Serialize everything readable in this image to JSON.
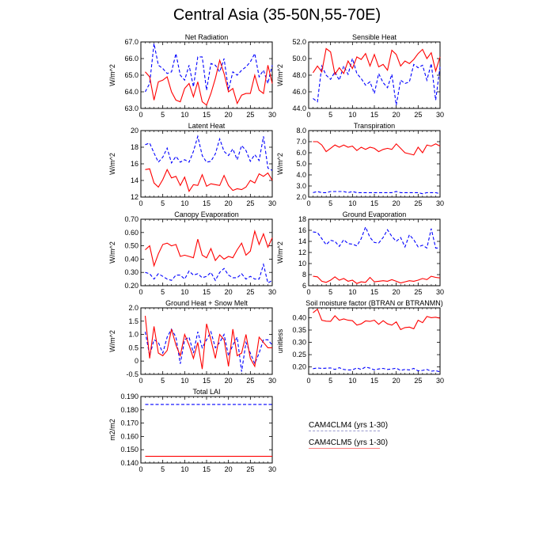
{
  "title": "Central Asia (35-50N,55-70E)",
  "colors": {
    "clm4": "#0000ff",
    "clm5": "#ff0000"
  },
  "legend": {
    "entries": [
      {
        "label": "CAM4CLM4 (yrs 1-30)",
        "style": "dashed",
        "color": "#0000ff"
      },
      {
        "label": "CAM4CLM5 (yrs 1-30)",
        "style": "solid",
        "color": "#ff0000"
      }
    ]
  },
  "chart_data": [
    {
      "type": "line",
      "title": "Net Radiation",
      "xlabel": "",
      "ylabel": "W/m^2",
      "xlim": [
        0,
        30
      ],
      "ylim": [
        63.0,
        67.0
      ],
      "xticks": [
        "0",
        "5",
        "10",
        "15",
        "20",
        "25",
        "30"
      ],
      "yticks": [
        "63.0",
        "64.0",
        "65.0",
        "66.0",
        "67.0"
      ],
      "series": [
        {
          "name": "CAM4CLM4 (yrs 1-30)",
          "style": "dashed",
          "values": [
            64.0,
            64.5,
            66.9,
            65.6,
            65.4,
            65.1,
            65.2,
            66.3,
            65.0,
            64.7,
            65.6,
            64.3,
            66.1,
            66.1,
            64.1,
            65.7,
            65.6,
            65.2,
            66.0,
            64.1,
            65.2,
            65.0,
            65.3,
            65.5,
            65.8,
            66.3,
            64.9,
            65.3,
            64.5,
            65.6
          ]
        },
        {
          "name": "CAM4CLM5 (yrs 1-30)",
          "style": "solid",
          "values": [
            65.2,
            64.9,
            63.5,
            64.6,
            64.7,
            64.9,
            64.0,
            63.5,
            63.4,
            64.2,
            64.5,
            63.7,
            64.6,
            63.4,
            63.2,
            63.9,
            64.8,
            65.9,
            65.1,
            64.0,
            64.2,
            63.3,
            63.8,
            63.9,
            63.9,
            65.0,
            64.1,
            63.9,
            65.6,
            64.5
          ]
        }
      ]
    },
    {
      "type": "line",
      "title": "Sensible Heat",
      "xlabel": "",
      "ylabel": "W/m^2",
      "xlim": [
        0,
        30
      ],
      "ylim": [
        44.0,
        52.0
      ],
      "xticks": [
        "0",
        "5",
        "10",
        "15",
        "20",
        "25",
        "30"
      ],
      "yticks": [
        "44.0",
        "46.0",
        "48.0",
        "50.0",
        "52.0"
      ],
      "series": [
        {
          "name": "CAM4CLM4 (yrs 1-30)",
          "style": "dashed",
          "values": [
            45.2,
            44.8,
            49.1,
            48.0,
            47.5,
            48.4,
            47.4,
            49.1,
            48.1,
            50.0,
            48.2,
            47.6,
            46.8,
            47.2,
            45.8,
            48.2,
            47.1,
            46.5,
            48.1,
            44.4,
            47.4,
            47.0,
            47.2,
            49.3,
            48.9,
            49.2,
            47.4,
            49.4,
            45.0,
            49.0
          ]
        },
        {
          "name": "CAM4CLM5 (yrs 1-30)",
          "style": "solid",
          "values": [
            48.3,
            49.1,
            48.4,
            51.2,
            50.8,
            48.1,
            48.9,
            48.2,
            49.7,
            48.8,
            50.2,
            49.9,
            50.6,
            49.1,
            50.5,
            49.0,
            49.3,
            48.6,
            51.0,
            50.5,
            49.1,
            49.7,
            49.4,
            49.9,
            50.6,
            51.1,
            50.0,
            50.7,
            48.5,
            50.2
          ]
        }
      ]
    },
    {
      "type": "line",
      "title": "Latent Heat",
      "xlabel": "",
      "ylabel": "W/m^2",
      "xlim": [
        0,
        30
      ],
      "ylim": [
        12,
        20
      ],
      "xticks": [
        "0",
        "5",
        "10",
        "15",
        "20",
        "25",
        "30"
      ],
      "yticks": [
        "12",
        "14",
        "16",
        "18",
        "20"
      ],
      "series": [
        {
          "name": "CAM4CLM4 (yrs 1-30)",
          "style": "dashed",
          "values": [
            18.3,
            18.5,
            17.3,
            16.2,
            16.8,
            17.9,
            16.1,
            16.9,
            16.2,
            16.5,
            16.2,
            17.5,
            19.3,
            17.0,
            16.2,
            16.3,
            17.2,
            19.0,
            17.5,
            17.0,
            17.8,
            16.5,
            18.2,
            17.6,
            16.3,
            17.1,
            16.4,
            19.3,
            15.5,
            15.2
          ]
        },
        {
          "name": "CAM4CLM5 (yrs 1-30)",
          "style": "solid",
          "values": [
            15.3,
            15.4,
            13.7,
            13.2,
            14.1,
            15.3,
            14.3,
            14.5,
            13.4,
            14.4,
            12.7,
            13.5,
            13.4,
            14.7,
            13.3,
            13.6,
            13.5,
            13.4,
            14.6,
            13.4,
            12.8,
            13.0,
            12.9,
            13.2,
            14.0,
            13.7,
            14.8,
            14.5,
            14.9,
            14.0
          ]
        }
      ]
    },
    {
      "type": "line",
      "title": "Transpiration",
      "xlabel": "",
      "ylabel": "W/m^2",
      "xlim": [
        0,
        30
      ],
      "ylim": [
        2.0,
        8.0
      ],
      "xticks": [
        "0",
        "5",
        "10",
        "15",
        "20",
        "25",
        "30"
      ],
      "yticks": [
        "2.0",
        "3.0",
        "4.0",
        "5.0",
        "6.0",
        "7.0",
        "8.0"
      ],
      "series": [
        {
          "name": "CAM4CLM4 (yrs 1-30)",
          "style": "dashed",
          "values": [
            2.4,
            2.5,
            2.4,
            2.4,
            2.5,
            2.5,
            2.5,
            2.5,
            2.4,
            2.5,
            2.4,
            2.4,
            2.4,
            2.4,
            2.4,
            2.4,
            2.4,
            2.4,
            2.4,
            2.5,
            2.4,
            2.4,
            2.4,
            2.4,
            2.4,
            2.3,
            2.4,
            2.4,
            2.4,
            2.3
          ]
        },
        {
          "name": "CAM4CLM5 (yrs 1-30)",
          "style": "solid",
          "values": [
            7.0,
            7.0,
            6.7,
            6.1,
            6.4,
            6.7,
            6.5,
            6.7,
            6.5,
            6.6,
            6.2,
            6.5,
            6.3,
            6.5,
            6.4,
            6.1,
            6.3,
            6.4,
            6.3,
            6.8,
            6.4,
            6.0,
            5.9,
            5.8,
            6.5,
            6.0,
            6.7,
            6.6,
            6.8,
            6.6
          ]
        }
      ]
    },
    {
      "type": "line",
      "title": "Canopy Evaporation",
      "xlabel": "",
      "ylabel": "W/m^2",
      "xlim": [
        0,
        30
      ],
      "ylim": [
        0.2,
        0.7
      ],
      "xticks": [
        "0",
        "5",
        "10",
        "15",
        "20",
        "25",
        "30"
      ],
      "yticks": [
        "0.20",
        "0.30",
        "0.40",
        "0.50",
        "0.60",
        "0.70"
      ],
      "series": [
        {
          "name": "CAM4CLM4 (yrs 1-30)",
          "style": "dashed",
          "values": [
            0.3,
            0.29,
            0.25,
            0.29,
            0.27,
            0.25,
            0.24,
            0.28,
            0.28,
            0.25,
            0.31,
            0.28,
            0.29,
            0.26,
            0.27,
            0.3,
            0.24,
            0.3,
            0.33,
            0.28,
            0.26,
            0.26,
            0.29,
            0.25,
            0.27,
            0.25,
            0.25,
            0.36,
            0.22,
            0.24
          ]
        },
        {
          "name": "CAM4CLM5 (yrs 1-30)",
          "style": "solid",
          "values": [
            0.47,
            0.5,
            0.35,
            0.44,
            0.51,
            0.52,
            0.5,
            0.51,
            0.42,
            0.43,
            0.42,
            0.41,
            0.55,
            0.43,
            0.41,
            0.48,
            0.39,
            0.43,
            0.4,
            0.42,
            0.41,
            0.47,
            0.52,
            0.43,
            0.46,
            0.61,
            0.51,
            0.59,
            0.49,
            0.56
          ]
        }
      ]
    },
    {
      "type": "line",
      "title": "Ground Evaporation",
      "xlabel": "",
      "ylabel": "W/m^2",
      "xlim": [
        0,
        30
      ],
      "ylim": [
        6,
        18
      ],
      "xticks": [
        "0",
        "5",
        "10",
        "15",
        "20",
        "25",
        "30"
      ],
      "yticks": [
        "6",
        "8",
        "10",
        "12",
        "14",
        "16",
        "18"
      ],
      "series": [
        {
          "name": "CAM4CLM4 (yrs 1-30)",
          "style": "dashed",
          "values": [
            15.7,
            15.6,
            14.5,
            13.4,
            14.2,
            14.0,
            13.1,
            14.3,
            13.6,
            13.5,
            13.2,
            14.5,
            16.6,
            14.7,
            13.8,
            13.7,
            14.7,
            16.1,
            14.9,
            14.0,
            14.7,
            13.0,
            15.2,
            14.3,
            13.0,
            13.3,
            12.8,
            16.3,
            12.8,
            12.8
          ]
        },
        {
          "name": "CAM4CLM5 (yrs 1-30)",
          "style": "solid",
          "values": [
            7.7,
            7.6,
            6.8,
            6.6,
            7.0,
            7.6,
            7.0,
            7.3,
            6.8,
            7.0,
            6.4,
            6.7,
            6.6,
            7.5,
            6.7,
            6.8,
            6.9,
            6.8,
            7.1,
            6.8,
            6.5,
            6.7,
            6.9,
            6.8,
            7.0,
            7.3,
            7.1,
            7.7,
            7.5,
            7.4
          ]
        }
      ]
    },
    {
      "type": "line",
      "title": "Ground Heat + Snow Melt",
      "xlabel": "",
      "ylabel": "W/m^2",
      "xlim": [
        0,
        30
      ],
      "ylim": [
        -0.5,
        2.0
      ],
      "xticks": [
        "0",
        "5",
        "10",
        "15",
        "20",
        "25",
        "30"
      ],
      "yticks": [
        "-0.5",
        "0",
        "0.5",
        "1.0",
        "1.5",
        "2.0"
      ],
      "series": [
        {
          "name": "CAM4CLM4 (yrs 1-30)",
          "style": "dashed",
          "values": [
            1.1,
            0.2,
            0.8,
            0.7,
            0.3,
            0.9,
            1.2,
            0.9,
            -0.1,
            0.8,
            0.9,
            0.3,
            1.1,
            0.5,
            0.8,
            1.1,
            0.5,
            0.7,
            1.0,
            0.2,
            0.6,
            0.9,
            -0.4,
            0.7,
            0.3,
            -0.1,
            0.3,
            0.8,
            0.8,
            0.6
          ]
        },
        {
          "name": "CAM4CLM5 (yrs 1-30)",
          "style": "solid",
          "values": [
            1.7,
            0.1,
            1.3,
            0.3,
            0.2,
            0.4,
            1.2,
            0.6,
            0.2,
            1.0,
            0.6,
            0.1,
            0.7,
            -0.3,
            1.4,
            0.8,
            0.1,
            1.0,
            0.8,
            -0.2,
            1.2,
            0.2,
            0.3,
            1.0,
            0.1,
            -0.2,
            0.9,
            0.7,
            0.5,
            0.5
          ]
        }
      ]
    },
    {
      "type": "line",
      "title": "Soil moisture factor (BTRAN or BTRANMN)",
      "xlabel": "",
      "ylabel": "unitless",
      "xlim": [
        0,
        30
      ],
      "ylim": [
        0.17,
        0.44
      ],
      "xticks": [
        "0",
        "5",
        "10",
        "15",
        "20",
        "25",
        "30"
      ],
      "yticks": [
        "0.20",
        "0.25",
        "0.30",
        "0.35",
        "0.40"
      ],
      "series": [
        {
          "name": "CAM4CLM4 (yrs 1-30)",
          "style": "dashed",
          "values": [
            0.193,
            0.196,
            0.194,
            0.195,
            0.196,
            0.19,
            0.197,
            0.19,
            0.188,
            0.188,
            0.196,
            0.19,
            0.2,
            0.195,
            0.188,
            0.192,
            0.194,
            0.19,
            0.192,
            0.195,
            0.186,
            0.19,
            0.188,
            0.194,
            0.184,
            0.186,
            0.19,
            0.183,
            0.185,
            0.18
          ]
        },
        {
          "name": "CAM4CLM5 (yrs 1-30)",
          "style": "solid",
          "values": [
            0.42,
            0.435,
            0.39,
            0.386,
            0.385,
            0.408,
            0.39,
            0.395,
            0.39,
            0.388,
            0.37,
            0.375,
            0.387,
            0.385,
            0.39,
            0.373,
            0.388,
            0.375,
            0.37,
            0.383,
            0.352,
            0.36,
            0.362,
            0.355,
            0.39,
            0.38,
            0.405,
            0.4,
            0.402,
            0.398
          ]
        }
      ]
    },
    {
      "type": "line",
      "title": "Total LAI",
      "xlabel": "",
      "ylabel": "m2/m2",
      "xlim": [
        0,
        30
      ],
      "ylim": [
        0.14,
        0.19
      ],
      "xticks": [
        "0",
        "5",
        "10",
        "15",
        "20",
        "25",
        "30"
      ],
      "yticks": [
        "0.140",
        "0.150",
        "0.160",
        "0.170",
        "0.180",
        "0.190"
      ],
      "series": [
        {
          "name": "CAM4CLM4 (yrs 1-30)",
          "style": "dashed",
          "values": [
            0.184,
            0.184,
            0.184,
            0.184,
            0.184,
            0.184,
            0.184,
            0.184,
            0.184,
            0.184,
            0.184,
            0.184,
            0.184,
            0.184,
            0.184,
            0.184,
            0.184,
            0.184,
            0.184,
            0.184,
            0.184,
            0.184,
            0.184,
            0.184,
            0.184,
            0.184,
            0.184,
            0.184,
            0.184,
            0.184
          ]
        },
        {
          "name": "CAM4CLM5 (yrs 1-30)",
          "style": "solid",
          "values": [
            0.145,
            0.145,
            0.145,
            0.145,
            0.145,
            0.145,
            0.145,
            0.145,
            0.145,
            0.145,
            0.145,
            0.145,
            0.145,
            0.145,
            0.145,
            0.145,
            0.145,
            0.145,
            0.145,
            0.145,
            0.145,
            0.145,
            0.145,
            0.145,
            0.145,
            0.145,
            0.145,
            0.145,
            0.145,
            0.145
          ]
        }
      ]
    }
  ]
}
